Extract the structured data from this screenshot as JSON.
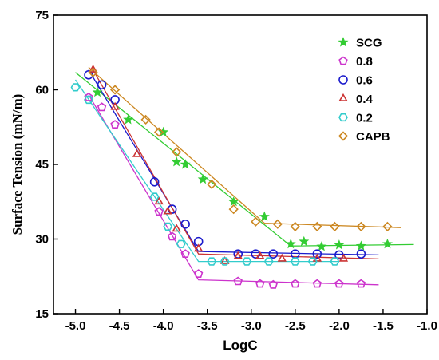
{
  "chart_data": {
    "type": "scatter",
    "title": "",
    "xlabel": "LogC",
    "ylabel": "Surface Tension (mN/m)",
    "xlim": [
      -5.25,
      -1.0
    ],
    "ylim": [
      15,
      75
    ],
    "xticks": [
      "-5.0",
      "-4.5",
      "-4.0",
      "-3.5",
      "-3.0",
      "-2.5",
      "-2.0",
      "-1.5",
      "-1.0"
    ],
    "yticks": [
      "15",
      "30",
      "45",
      "60",
      "75"
    ],
    "legend_position": "top-right",
    "series": [
      {
        "name": "SCG",
        "color": "#33cc33",
        "marker": "star",
        "points": [
          [
            -4.75,
            59.5
          ],
          [
            -4.4,
            54.0
          ],
          [
            -4.0,
            51.5
          ],
          [
            -3.85,
            45.5
          ],
          [
            -3.75,
            45.0
          ],
          [
            -3.55,
            42.0
          ],
          [
            -3.2,
            37.5
          ],
          [
            -2.85,
            34.5
          ],
          [
            -2.55,
            29.0
          ],
          [
            -2.4,
            29.5
          ],
          [
            -2.2,
            28.5
          ],
          [
            -2.0,
            28.8
          ],
          [
            -1.75,
            28.6
          ],
          [
            -1.45,
            29.0
          ]
        ],
        "fit": [
          [
            -5.0,
            63.5
          ],
          [
            -2.55,
            28.6
          ],
          [
            -1.15,
            28.9
          ]
        ]
      },
      {
        "name": "0.8",
        "color": "#cc33cc",
        "marker": "pentagon",
        "points": [
          [
            -4.85,
            58.5
          ],
          [
            -4.7,
            56.5
          ],
          [
            -4.55,
            53.0
          ],
          [
            -4.05,
            35.5
          ],
          [
            -3.9,
            30.5
          ],
          [
            -3.75,
            27.0
          ],
          [
            -3.6,
            23.0
          ],
          [
            -3.15,
            21.5
          ],
          [
            -2.9,
            21.0
          ],
          [
            -2.75,
            20.8
          ],
          [
            -2.5,
            21.0
          ],
          [
            -2.25,
            21.0
          ],
          [
            -2.0,
            21.0
          ],
          [
            -1.75,
            21.0
          ]
        ],
        "fit": [
          [
            -4.85,
            59.0
          ],
          [
            -3.6,
            21.8
          ],
          [
            -1.55,
            20.8
          ]
        ]
      },
      {
        "name": "0.6",
        "color": "#1a1acc",
        "marker": "circle",
        "points": [
          [
            -4.85,
            63.0
          ],
          [
            -4.7,
            61.0
          ],
          [
            -4.55,
            58.0
          ],
          [
            -4.1,
            41.5
          ],
          [
            -3.9,
            36.0
          ],
          [
            -3.75,
            33.0
          ],
          [
            -3.6,
            29.5
          ],
          [
            -3.15,
            27.0
          ],
          [
            -2.95,
            27.0
          ],
          [
            -2.75,
            27.0
          ],
          [
            -2.5,
            27.0
          ],
          [
            -2.25,
            27.0
          ],
          [
            -2.0,
            26.8
          ],
          [
            -1.75,
            27.0
          ]
        ],
        "fit": [
          [
            -4.85,
            64.0
          ],
          [
            -3.6,
            27.5
          ],
          [
            -1.55,
            26.8
          ]
        ]
      },
      {
        "name": "0.4",
        "color": "#cc3333",
        "marker": "triangle",
        "points": [
          [
            -4.8,
            64.0
          ],
          [
            -4.55,
            56.5
          ],
          [
            -4.3,
            47.0
          ],
          [
            -4.05,
            37.5
          ],
          [
            -3.95,
            35.5
          ],
          [
            -3.85,
            32.0
          ],
          [
            -3.6,
            28.0
          ],
          [
            -3.3,
            25.5
          ],
          [
            -3.15,
            26.5
          ],
          [
            -2.9,
            26.5
          ],
          [
            -2.65,
            26.0
          ],
          [
            -2.25,
            26.0
          ],
          [
            -1.95,
            26.0
          ]
        ],
        "fit": [
          [
            -4.8,
            64.0
          ],
          [
            -3.6,
            27.0
          ],
          [
            -1.55,
            26.0
          ]
        ]
      },
      {
        "name": "0.2",
        "color": "#33cccc",
        "marker": "hexagon",
        "points": [
          [
            -5.0,
            60.5
          ],
          [
            -4.85,
            58.0
          ],
          [
            -4.1,
            38.5
          ],
          [
            -3.95,
            32.5
          ],
          [
            -3.8,
            29.0
          ],
          [
            -3.45,
            25.5
          ],
          [
            -3.3,
            25.5
          ],
          [
            -3.05,
            25.5
          ],
          [
            -2.8,
            25.5
          ],
          [
            -2.5,
            25.5
          ],
          [
            -2.3,
            25.5
          ],
          [
            -2.05,
            25.5
          ]
        ],
        "fit": [
          [
            -5.0,
            62.0
          ],
          [
            -3.6,
            25.5
          ],
          [
            -2.0,
            25.5
          ]
        ]
      },
      {
        "name": "CAPB",
        "color": "#cc8822",
        "marker": "diamond",
        "points": [
          [
            -4.8,
            63.5
          ],
          [
            -4.55,
            60.0
          ],
          [
            -4.2,
            54.0
          ],
          [
            -4.05,
            51.5
          ],
          [
            -3.85,
            47.5
          ],
          [
            -3.45,
            41.0
          ],
          [
            -3.2,
            36.0
          ],
          [
            -2.95,
            33.5
          ],
          [
            -2.7,
            33.0
          ],
          [
            -2.5,
            32.5
          ],
          [
            -2.25,
            32.5
          ],
          [
            -2.05,
            32.5
          ],
          [
            -1.75,
            32.5
          ],
          [
            -1.45,
            32.5
          ]
        ],
        "fit": [
          [
            -4.85,
            64.5
          ],
          [
            -2.85,
            33.2
          ],
          [
            -1.3,
            32.3
          ]
        ]
      }
    ]
  }
}
